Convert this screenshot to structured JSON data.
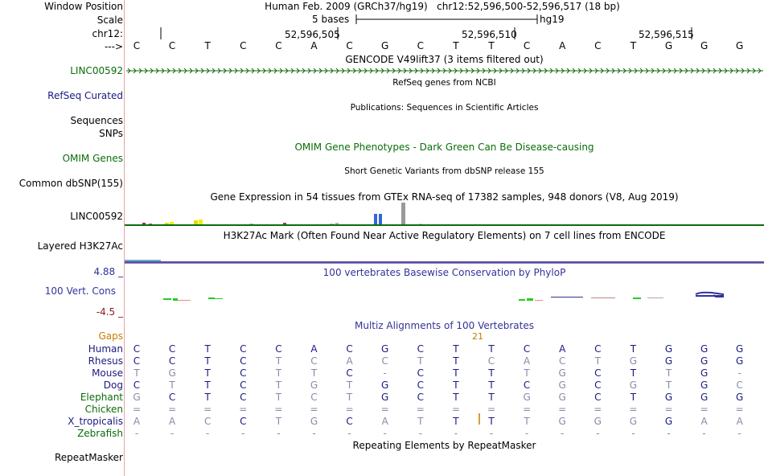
{
  "colors": {
    "label": "#000000",
    "gene_green": "#0a6d0a",
    "refseq_blue": "#1a1a80",
    "phylop_blue": "#333399",
    "phylop_red": "#8b1a1a",
    "gaps_orange": "#c67d00",
    "separator": "#e3a4a4"
  },
  "header": {
    "window_position_label": "Window Position",
    "window_position_value": "Human Feb. 2009 (GRCh37/hg19)   chr12:52,596,500-52,596,517 (18 bp)",
    "scale_label": "Scale",
    "scale_bases": "5 bases",
    "scale_db": "hg19",
    "chrom_label": "chr12:",
    "positions": [
      "52,596,505",
      "52,596,510",
      "52,596,515"
    ],
    "strand_label": "--->",
    "bases": [
      "C",
      "C",
      "T",
      "C",
      "C",
      "A",
      "C",
      "G",
      "C",
      "T",
      "T",
      "C",
      "A",
      "C",
      "T",
      "G",
      "G",
      "G"
    ]
  },
  "tracks": {
    "gencode": {
      "title": "GENCODE V49lift37 (3 items filtered out)",
      "label": "LINC00592"
    },
    "refseq": {
      "title": "RefSeq genes from NCBI",
      "label": "RefSeq Curated"
    },
    "publications": {
      "title": "Publications: Sequences in Scientific Articles",
      "label": "Sequences"
    },
    "snps_label": "SNPs",
    "omim": {
      "title": "OMIM Gene Phenotypes - Dark Green Can Be Disease-causing",
      "label": "OMIM Genes"
    },
    "dbsnp": {
      "title": "Short Genetic Variants from dbSNP release 155",
      "label": "Common dbSNP(155)"
    },
    "gtex": {
      "title": "Gene Expression in 54 tissues from GTEx RNA-seq of 17382 samples, 948 donors (V8, Aug 2019)",
      "label": "LINC00592"
    },
    "h3k27ac": {
      "title": "H3K27Ac Mark (Often Found Near Active Regulatory Elements) on 7 cell lines from ENCODE",
      "label": "Layered H3K27Ac"
    },
    "phylop": {
      "title": "100 vertebrates Basewise Conservation by PhyloP",
      "label": "100 Vert. Cons",
      "max": "4.88 _",
      "min": "-4.5 _"
    },
    "multiz": {
      "title": "Multiz Alignments of 100 Vertebrates",
      "gaps_label": "Gaps",
      "gap_count": "21"
    },
    "repeatmasker": {
      "title": "Repeating Elements by RepeatMasker",
      "label": "RepeatMasker"
    }
  },
  "alignment": [
    {
      "species": "Human",
      "bases": [
        "C",
        "C",
        "T",
        "C",
        "C",
        "A",
        "C",
        "G",
        "C",
        "T",
        "T",
        "C",
        "A",
        "C",
        "T",
        "G",
        "G",
        "G"
      ]
    },
    {
      "species": "Rhesus",
      "bases": [
        "C",
        "C",
        "T",
        "C",
        "T",
        "C",
        "A",
        "C",
        "T",
        "T",
        "C",
        "A",
        "C",
        "T",
        "G",
        "G",
        "G",
        "G"
      ]
    },
    {
      "species": "Mouse",
      "bases": [
        "T",
        "G",
        "T",
        "C",
        "T",
        "T",
        "C",
        "-",
        "C",
        "T",
        "T",
        "T",
        "G",
        "C",
        "T",
        "T",
        "G",
        "-"
      ]
    },
    {
      "species": "Dog",
      "bases": [
        "C",
        "T",
        "T",
        "C",
        "T",
        "G",
        "T",
        "G",
        "C",
        "T",
        "T",
        "C",
        "G",
        "C",
        "G",
        "T",
        "G",
        "C"
      ]
    },
    {
      "species": "Elephant",
      "bases": [
        "G",
        "C",
        "T",
        "C",
        "T",
        "C",
        "T",
        "G",
        "C",
        "T",
        "T",
        "G",
        "G",
        "C",
        "T",
        "G",
        "G",
        "G"
      ]
    },
    {
      "species": "Chicken",
      "bases": [
        "=",
        "=",
        "=",
        "=",
        "=",
        "=",
        "=",
        "=",
        "=",
        "=",
        "=",
        "=",
        "=",
        "=",
        "=",
        "=",
        "=",
        "="
      ]
    },
    {
      "species": "X_tropicalis",
      "bases": [
        "A",
        "A",
        "C",
        "C",
        "T",
        "G",
        "C",
        "A",
        "T",
        "T",
        "T",
        "T",
        "G",
        "G",
        "G",
        "G",
        "A",
        "A"
      ]
    },
    {
      "species": "Zebrafish",
      "bases": [
        "-",
        "-",
        "-",
        "-",
        "-",
        "-",
        "-",
        "-",
        "-",
        "-",
        "-",
        "-",
        "-",
        "-",
        "-",
        "-",
        "-",
        "-"
      ]
    }
  ]
}
